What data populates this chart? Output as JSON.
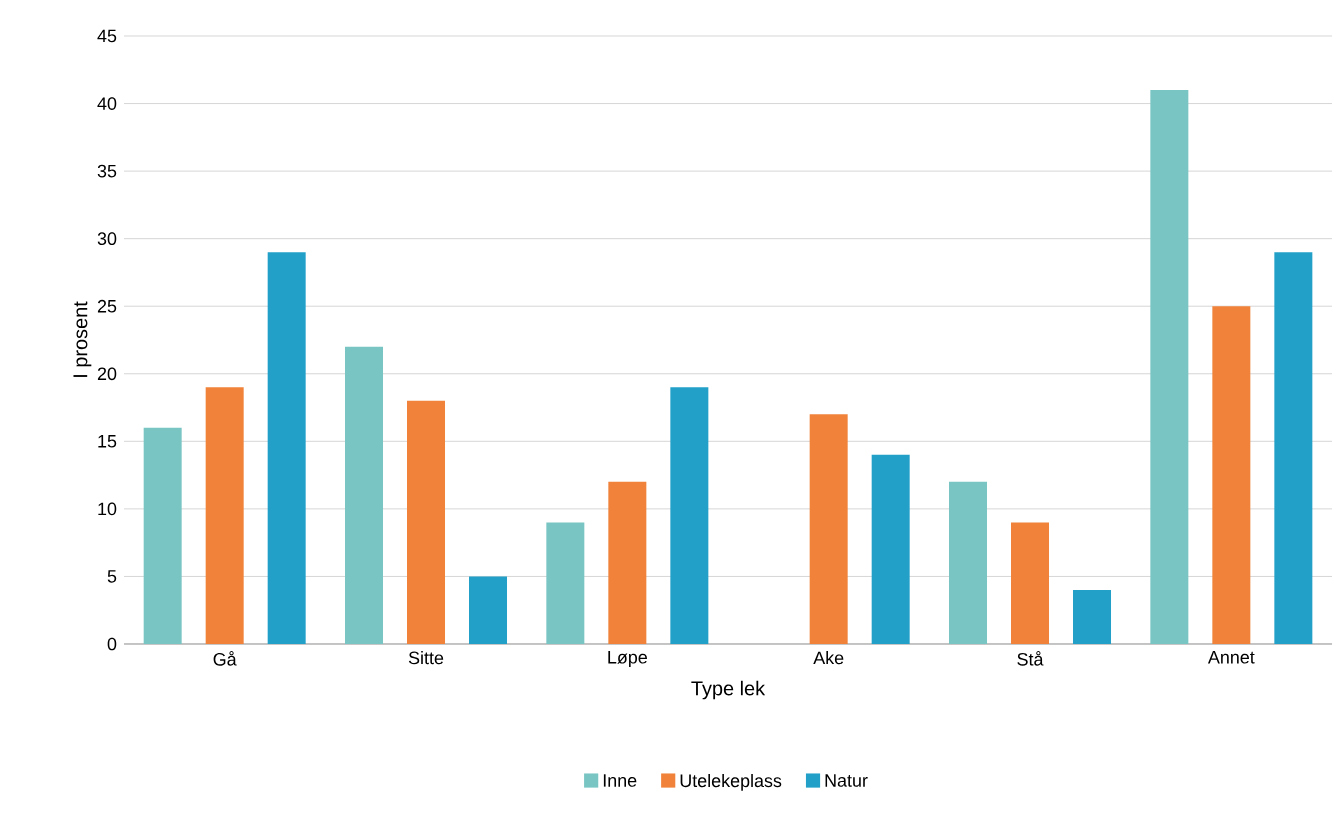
{
  "chart_data": {
    "type": "bar",
    "xlabel": "Type lek",
    "ylabel": "I prosent",
    "categories": [
      "Gå",
      "Sitte",
      "Løpe",
      "Ake",
      "Stå",
      "Annet"
    ],
    "series": [
      {
        "name": "Inne",
        "color": "#79c5c4",
        "values": [
          16,
          22,
          9,
          null,
          12,
          41
        ]
      },
      {
        "name": "Utelekeplass",
        "color": "#f0823a",
        "values": [
          19,
          18,
          12,
          17,
          9,
          25
        ]
      },
      {
        "name": "Natur",
        "color": "#22a0c8",
        "values": [
          29,
          5,
          19,
          14,
          4,
          29
        ]
      }
    ],
    "ylim": [
      0,
      45
    ],
    "yticks": [
      0,
      5,
      10,
      15,
      20,
      25,
      30,
      35,
      40,
      45
    ],
    "grid": "y",
    "legend": "bottom"
  }
}
